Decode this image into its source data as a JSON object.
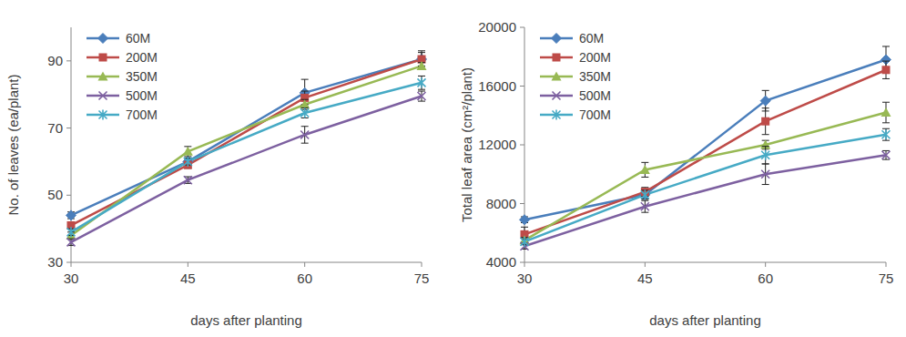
{
  "chart_data": [
    {
      "type": "line",
      "x_label": "days after planting",
      "y_label": "No. of leaves (ea/plant)",
      "x": [
        30,
        45,
        60,
        75
      ],
      "xlim": [
        30,
        75
      ],
      "xticks": [
        30,
        45,
        60,
        75
      ],
      "ylim": [
        30,
        100
      ],
      "yticks": [
        30,
        50,
        70,
        90
      ],
      "grid": false,
      "legend": "top-left",
      "series": [
        {
          "name": "60M",
          "color": "#4a7ebb",
          "marker": "diamond",
          "line_style": "solid",
          "values": [
            44,
            60,
            80.5,
            90.5
          ],
          "errors": [
            1,
            1,
            4,
            2.5
          ]
        },
        {
          "name": "200M",
          "color": "#be4b48",
          "marker": "square",
          "line_style": "solid",
          "values": [
            41,
            59,
            79,
            90.5
          ],
          "errors": [
            1,
            1,
            2,
            2
          ]
        },
        {
          "name": "350M",
          "color": "#98b954",
          "marker": "triangle",
          "line_style": "solid",
          "values": [
            38,
            63,
            77,
            88.5
          ],
          "errors": [
            1,
            1.5,
            1.5,
            1
          ]
        },
        {
          "name": "500M",
          "color": "#7d60a0",
          "marker": "x",
          "line_style": "solid",
          "values": [
            36,
            54.5,
            68,
            79.5
          ],
          "errors": [
            1,
            1,
            2.5,
            1.5
          ]
        },
        {
          "name": "700M",
          "color": "#46aac5",
          "marker": "star",
          "line_style": "solid",
          "values": [
            39,
            60,
            74.5,
            83.5
          ],
          "errors": [
            1,
            1,
            1.5,
            2
          ]
        }
      ]
    },
    {
      "type": "line",
      "x_label": "days after planting",
      "y_label": "Total leaf area (cm²/plant)",
      "x": [
        30,
        45,
        60,
        75
      ],
      "xlim": [
        30,
        75
      ],
      "xticks": [
        30,
        45,
        60,
        75
      ],
      "ylim": [
        4000,
        20000
      ],
      "yticks": [
        4000,
        8000,
        12000,
        16000,
        20000
      ],
      "grid": false,
      "legend": "top-left",
      "series": [
        {
          "name": "60M",
          "color": "#4a7ebb",
          "marker": "diamond",
          "line_style": "solid",
          "values": [
            6900,
            8600,
            15000,
            17800
          ],
          "errors": [
            200,
            300,
            700,
            900
          ]
        },
        {
          "name": "200M",
          "color": "#be4b48",
          "marker": "square",
          "line_style": "solid",
          "values": [
            5900,
            8800,
            13600,
            17100
          ],
          "errors": [
            500,
            300,
            900,
            600
          ]
        },
        {
          "name": "350M",
          "color": "#98b954",
          "marker": "triangle",
          "line_style": "solid",
          "values": [
            5500,
            10300,
            12000,
            14200
          ],
          "errors": [
            200,
            500,
            300,
            700
          ]
        },
        {
          "name": "500M",
          "color": "#7d60a0",
          "marker": "x",
          "line_style": "solid",
          "values": [
            5100,
            7800,
            10000,
            11300
          ],
          "errors": [
            200,
            400,
            700,
            300
          ]
        },
        {
          "name": "700M",
          "color": "#46aac5",
          "marker": "star",
          "line_style": "solid",
          "values": [
            5400,
            8600,
            11300,
            12700
          ],
          "errors": [
            200,
            300,
            600,
            400
          ]
        }
      ]
    }
  ]
}
